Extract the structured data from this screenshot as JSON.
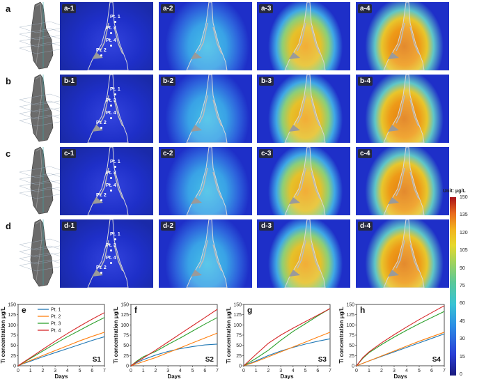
{
  "rows": [
    {
      "letter": "a",
      "panels": [
        "a-1",
        "a-2",
        "a-3",
        "a-4"
      ],
      "points": [
        "Pt. 1",
        "Pt. 3",
        "Pt. 4",
        "Pt. 2"
      ]
    },
    {
      "letter": "b",
      "panels": [
        "b-1",
        "b-2",
        "b-3",
        "b-4"
      ],
      "points": [
        "Pt. 1",
        "Pt. 3",
        "Pt. 4",
        "Pt. 2"
      ]
    },
    {
      "letter": "c",
      "panels": [
        "c-1",
        "c-2",
        "c-3",
        "c-4"
      ],
      "points": [
        "Pt. 1",
        "Pt. 3",
        "Pt. 4",
        "Pt. 2"
      ]
    },
    {
      "letter": "d",
      "panels": [
        "d-1",
        "d-2",
        "d-3",
        "d-4"
      ],
      "points": [
        "Pt. 1",
        "Pt. 3",
        "Pt. 4",
        "Pt. 2"
      ]
    }
  ],
  "model_labels": [
    "S1",
    "S2",
    "S3",
    "S4"
  ],
  "colorbar": {
    "unit": "Unit: μg/L",
    "ticks": [
      "150",
      "135",
      "120",
      "105",
      "90",
      "75",
      "60",
      "45",
      "30",
      "15",
      "0"
    ]
  },
  "colors": {
    "pt1": "#1f77b4",
    "pt2": "#ff7f0e",
    "pt3": "#2ca02c",
    "pt4": "#d62728",
    "field_low": "#1e2fc8",
    "field_mid": "#45c0e6",
    "field_high": "#e07a12"
  },
  "chart_data": [
    {
      "panel": "e",
      "type": "line",
      "label": "S1",
      "xlabel": "Days",
      "ylabel": "Ti concentration μg/L",
      "xlim": [
        0,
        7
      ],
      "ylim": [
        0,
        150
      ],
      "xticks": [
        0,
        1,
        2,
        3,
        4,
        5,
        6,
        7
      ],
      "yticks": [
        0,
        25,
        50,
        75,
        100,
        125,
        150
      ],
      "legend": [
        "Pt. 1",
        "Pt. 2",
        "Pt. 3",
        "Pt. 4"
      ],
      "x": [
        0,
        0.5,
        1,
        2,
        3,
        4,
        5,
        6,
        7
      ],
      "series": [
        {
          "name": "Pt. 1",
          "values": [
            0,
            6,
            11,
            22,
            32,
            42,
            52,
            62,
            71
          ]
        },
        {
          "name": "Pt. 2",
          "values": [
            0,
            7,
            13,
            25,
            37,
            49,
            61,
            72,
            82
          ]
        },
        {
          "name": "Pt. 3",
          "values": [
            0,
            9,
            18,
            36,
            54,
            71,
            87,
            103,
            118
          ]
        },
        {
          "name": "Pt. 4",
          "values": [
            0,
            10,
            20,
            40,
            60,
            79,
            97,
            114,
            130
          ]
        }
      ]
    },
    {
      "panel": "f",
      "type": "line",
      "label": "S2",
      "xlabel": "Days",
      "ylabel": "Ti concentration μg/L",
      "xlim": [
        0,
        7
      ],
      "ylim": [
        0,
        150
      ],
      "xticks": [
        0,
        1,
        2,
        3,
        4,
        5,
        6,
        7
      ],
      "yticks": [
        0,
        25,
        50,
        75,
        100,
        125,
        150
      ],
      "x": [
        0,
        0.5,
        1,
        2,
        3,
        4,
        5,
        6,
        7
      ],
      "series": [
        {
          "name": "Pt. 1",
          "values": [
            0,
            8,
            15,
            26,
            35,
            42,
            47,
            51,
            53
          ]
        },
        {
          "name": "Pt. 2",
          "values": [
            0,
            5,
            10,
            20,
            32,
            44,
            56,
            68,
            80
          ]
        },
        {
          "name": "Pt. 3",
          "values": [
            0,
            12,
            22,
            35,
            52,
            68,
            85,
            102,
            118
          ]
        },
        {
          "name": "Pt. 4",
          "values": [
            0,
            10,
            19,
            38,
            58,
            78,
            98,
            118,
            138
          ]
        }
      ]
    },
    {
      "panel": "g",
      "type": "line",
      "label": "S3",
      "xlabel": "Days",
      "ylabel": "Ti concentration μg/L",
      "xlim": [
        0,
        7
      ],
      "ylim": [
        0,
        150
      ],
      "xticks": [
        0,
        1,
        2,
        3,
        4,
        5,
        6,
        7
      ],
      "yticks": [
        0,
        25,
        50,
        75,
        100,
        125,
        150
      ],
      "x": [
        0,
        0.5,
        1,
        2,
        3,
        4,
        5,
        6,
        7
      ],
      "series": [
        {
          "name": "Pt. 1",
          "values": [
            0,
            6,
            12,
            25,
            36,
            45,
            53,
            60,
            66
          ]
        },
        {
          "name": "Pt. 2",
          "values": [
            0,
            5,
            10,
            22,
            34,
            46,
            58,
            70,
            82
          ]
        },
        {
          "name": "Pt. 3",
          "values": [
            0,
            9,
            18,
            38,
            62,
            84,
            103,
            122,
            140
          ]
        },
        {
          "name": "Pt. 4",
          "values": [
            0,
            14,
            28,
            55,
            75,
            92,
            108,
            124,
            140
          ]
        }
      ]
    },
    {
      "panel": "h",
      "type": "line",
      "label": "S4",
      "xlabel": "Days",
      "ylabel": "Ti concentration μg/L",
      "xlim": [
        0,
        7
      ],
      "ylim": [
        0,
        150
      ],
      "xticks": [
        0,
        1,
        2,
        3,
        4,
        5,
        6,
        7
      ],
      "yticks": [
        0,
        25,
        50,
        75,
        100,
        125,
        150
      ],
      "x": [
        0,
        0.5,
        1,
        2,
        3,
        4,
        5,
        6,
        7
      ],
      "series": [
        {
          "name": "Pt. 1",
          "values": [
            0,
            6,
            12,
            23,
            34,
            45,
            56,
            67,
            78
          ]
        },
        {
          "name": "Pt. 2",
          "values": [
            0,
            6,
            12,
            24,
            36,
            48,
            60,
            71,
            82
          ]
        },
        {
          "name": "Pt. 3",
          "values": [
            0,
            18,
            32,
            52,
            70,
            87,
            103,
            118,
            133
          ]
        },
        {
          "name": "Pt. 4",
          "values": [
            0,
            20,
            34,
            56,
            76,
            95,
            113,
            130,
            147
          ]
        }
      ]
    }
  ]
}
